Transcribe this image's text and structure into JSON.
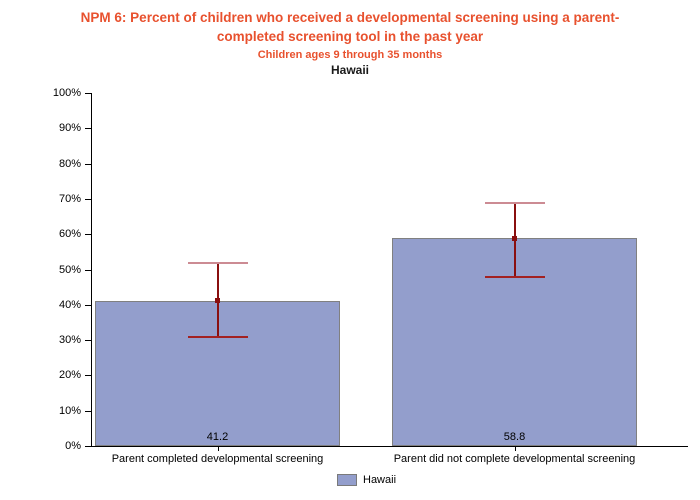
{
  "colors": {
    "title_text": "#e8512e",
    "subtitle_text": "#e8512e",
    "region_text": "#1a1a1a",
    "bar_fill": "#939ecc",
    "bar_border": "#808080",
    "error_line": "#8a0f0f",
    "error_cap_top": "#cc8b93",
    "error_cap_bottom": "#a32121",
    "error_marker": "#8a0f0f",
    "axis": "#000000"
  },
  "chart_data": {
    "type": "bar",
    "title": "NPM 6: Percent of children who received a developmental screening using a parent-completed screening tool in the past year",
    "subtitle": "Children ages 9 through 35 months",
    "region": "Hawaii",
    "categories": [
      "Parent completed developmental screening",
      "Parent did not complete developmental screening"
    ],
    "series": [
      {
        "name": "Hawaii",
        "values": [
          41.2,
          58.8
        ],
        "ci_low": [
          31.0,
          47.9
        ],
        "ci_high": [
          51.7,
          68.9
        ]
      }
    ],
    "value_labels": [
      "41.2",
      "58.8"
    ],
    "xlabel": "",
    "ylabel": "",
    "ylim": [
      0,
      100
    ],
    "ytick_interval": 10,
    "ytick_labels": [
      "0%",
      "10%",
      "20%",
      "30%",
      "40%",
      "50%",
      "60%",
      "70%",
      "80%",
      "90%",
      "100%"
    ],
    "grid": false,
    "error_bars": true,
    "legend": {
      "position": "bottom-center",
      "entries": [
        {
          "label": "Hawaii"
        }
      ]
    }
  }
}
